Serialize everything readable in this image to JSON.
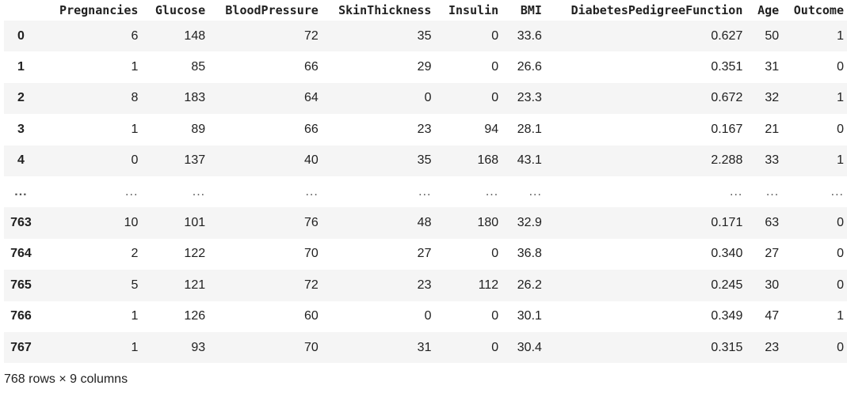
{
  "dataframe": {
    "columns": [
      "Pregnancies",
      "Glucose",
      "BloodPressure",
      "SkinThickness",
      "Insulin",
      "BMI",
      "DiabetesPedigreeFunction",
      "Age",
      "Outcome"
    ],
    "index": [
      "0",
      "1",
      "2",
      "3",
      "4",
      "...",
      "763",
      "764",
      "765",
      "766",
      "767"
    ],
    "rows": [
      [
        "6",
        "148",
        "72",
        "35",
        "0",
        "33.6",
        "0.627",
        "50",
        "1"
      ],
      [
        "1",
        "85",
        "66",
        "29",
        "0",
        "26.6",
        "0.351",
        "31",
        "0"
      ],
      [
        "8",
        "183",
        "64",
        "0",
        "0",
        "23.3",
        "0.672",
        "32",
        "1"
      ],
      [
        "1",
        "89",
        "66",
        "23",
        "94",
        "28.1",
        "0.167",
        "21",
        "0"
      ],
      [
        "0",
        "137",
        "40",
        "35",
        "168",
        "43.1",
        "2.288",
        "33",
        "1"
      ],
      [
        "...",
        "...",
        "...",
        "...",
        "...",
        "...",
        "...",
        "...",
        "..."
      ],
      [
        "10",
        "101",
        "76",
        "48",
        "180",
        "32.9",
        "0.171",
        "63",
        "0"
      ],
      [
        "2",
        "122",
        "70",
        "27",
        "0",
        "36.8",
        "0.340",
        "27",
        "0"
      ],
      [
        "5",
        "121",
        "72",
        "23",
        "112",
        "26.2",
        "0.245",
        "30",
        "0"
      ],
      [
        "1",
        "126",
        "60",
        "0",
        "0",
        "30.1",
        "0.349",
        "47",
        "1"
      ],
      [
        "1",
        "93",
        "70",
        "31",
        "0",
        "30.4",
        "0.315",
        "23",
        "0"
      ]
    ],
    "shape_text": "768 rows × 9 columns"
  }
}
